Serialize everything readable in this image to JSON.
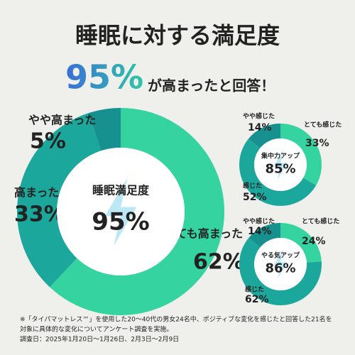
{
  "header": {
    "title": "睡眠に対する満足度",
    "headline_value": "95%",
    "headline_text": "が高まったと回答！"
  },
  "chart_data": [
    {
      "type": "pie",
      "center_label": "睡眠満足度",
      "center_value": "95%",
      "categories": [
        "とても高まった",
        "高まった",
        "やや高まった"
      ],
      "values": [
        62,
        33,
        5
      ],
      "value_labels": [
        "62%",
        "33%",
        "5%"
      ],
      "colors": [
        "#34d3a0",
        "#1ba79b",
        "#16918f"
      ]
    },
    {
      "type": "pie",
      "center_label": "集中力アップ",
      "center_value": "85%",
      "categories": [
        "とても感じた",
        "感じた",
        "やや感じた"
      ],
      "values": [
        33,
        52,
        14
      ],
      "value_labels": [
        "33%",
        "52%",
        "14%"
      ],
      "colors": [
        "#34d3a0",
        "#1ba79b",
        "#16918f"
      ]
    },
    {
      "type": "pie",
      "center_label": "やる気アップ",
      "center_value": "86%",
      "categories": [
        "とても感じた",
        "感じた",
        "やや感じた"
      ],
      "values": [
        24,
        62,
        14
      ],
      "value_labels": [
        "24%",
        "62%",
        "14%"
      ],
      "colors": [
        "#34d3a0",
        "#1ba79b",
        "#16918f"
      ]
    }
  ],
  "footnote": [
    "※「タイパマットレス™」を使用した20〜40代の男女24名中、ポジティブな変化を感じたと回答した21名を",
    "対象に具体的な変化についてアンケート調査を実施。",
    "調査日：2025年1月20日〜1月26日、2月3日〜2月9日"
  ]
}
